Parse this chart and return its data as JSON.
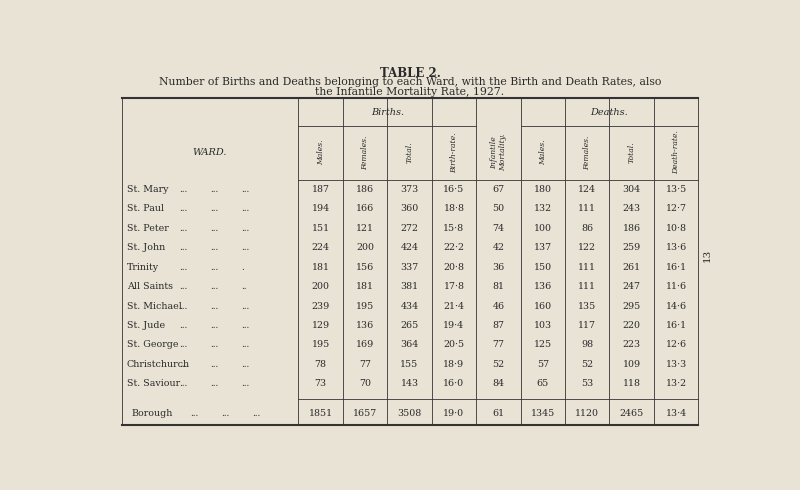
{
  "title1": "TABLE 2.",
  "title2": "Number of Births and Deaths belonging to each Ward, with the Birth and Death Rates, also",
  "title3": "the Infantile Mortality Rate, 1927.",
  "bg_color": "#e8e3d5",
  "text_color": "#2a2a2a",
  "wards": [
    "St. Mary",
    "St. Paul",
    "St. Peter",
    "St. John",
    "Trinity",
    "All Saints",
    "St. Michael",
    "St. Jude",
    "St. George",
    "Christchurch",
    "St. Saviour"
  ],
  "ward_dots": [
    [
      "...",
      "...",
      "..."
    ],
    [
      "...",
      "...",
      "..."
    ],
    [
      "...",
      "...",
      "..."
    ],
    [
      "...",
      "...",
      "..."
    ],
    [
      "...",
      "...",
      "."
    ],
    [
      "...",
      "...",
      ".."
    ],
    [
      "...",
      "...",
      "..."
    ],
    [
      "...",
      "...",
      "..."
    ],
    [
      "...",
      "...",
      "..."
    ],
    [
      "...",
      "...",
      "..."
    ],
    [
      "...",
      "...",
      "..."
    ]
  ],
  "births_males": [
    187,
    194,
    151,
    224,
    181,
    200,
    239,
    129,
    195,
    78,
    73
  ],
  "births_females": [
    186,
    166,
    121,
    200,
    156,
    181,
    195,
    136,
    169,
    77,
    70
  ],
  "births_total": [
    373,
    360,
    272,
    424,
    337,
    381,
    434,
    265,
    364,
    155,
    143
  ],
  "birth_rate": [
    "16·5",
    "18·8",
    "15·8",
    "22·2",
    "20·8",
    "17·8",
    "21·4",
    "19·4",
    "20·5",
    "18·9",
    "16·0"
  ],
  "infant_mort": [
    67,
    50,
    74,
    42,
    36,
    81,
    46,
    87,
    77,
    52,
    84
  ],
  "deaths_males": [
    180,
    132,
    100,
    137,
    150,
    136,
    160,
    103,
    125,
    57,
    65
  ],
  "deaths_females": [
    124,
    111,
    86,
    122,
    111,
    111,
    135,
    117,
    98,
    52,
    53
  ],
  "deaths_total": [
    304,
    243,
    186,
    259,
    261,
    247,
    295,
    220,
    223,
    109,
    118
  ],
  "death_rate": [
    "13·5",
    "12·7",
    "10·8",
    "13·6",
    "16·1",
    "11·6",
    "14·6",
    "16·1",
    "12·6",
    "13·3",
    "13·2"
  ],
  "borough_births_males": 1851,
  "borough_births_females": 1657,
  "borough_births_total": 3508,
  "borough_birth_rate": "19·0",
  "borough_infant_mort": 61,
  "borough_deaths_males": 1345,
  "borough_deaths_females": 1120,
  "borough_deaths_total": 2465,
  "borough_death_rate": "13·4",
  "col_births": "Births.",
  "col_deaths": "Deaths.",
  "col_males": "Males.",
  "col_females": "Females.",
  "col_total": "Total.",
  "col_birth_rate": "Birth-rate.",
  "col_infant_mort": "Infantile\nMortality.",
  "col_death_rate": "Death-rate.",
  "col_ward": "WARD.",
  "side_number": "13"
}
